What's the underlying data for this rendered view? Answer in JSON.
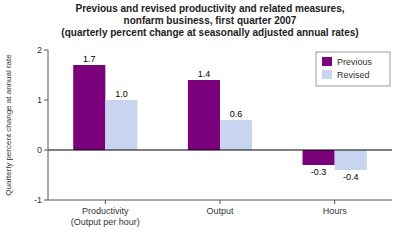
{
  "chart_data": {
    "type": "bar",
    "title": "Previous and revised productivity and related measures,\nnonfarm business, first quarter 2007\n(quarterly percent change at seasonally adjusted annual rates)",
    "categories": [
      "Productivity\n(Output per hour)",
      "Output",
      "Hours"
    ],
    "series": [
      {
        "name": "Previous",
        "color": "#7b007b",
        "values": [
          1.7,
          1.4,
          -0.3
        ],
        "value_labels": [
          "1.7",
          "1.4",
          "-0.3"
        ]
      },
      {
        "name": "Revised",
        "color": "#c8d4f0",
        "values": [
          1.0,
          0.6,
          -0.4
        ],
        "value_labels": [
          "1.0",
          "0.6",
          "-0.4"
        ]
      }
    ],
    "ylabel": "Quarterly percent change at annual rate",
    "ylim": [
      -1,
      2
    ],
    "yticks": [
      -1,
      0,
      1,
      2
    ],
    "grid": false,
    "legend": "upper right",
    "data_labels": true
  }
}
